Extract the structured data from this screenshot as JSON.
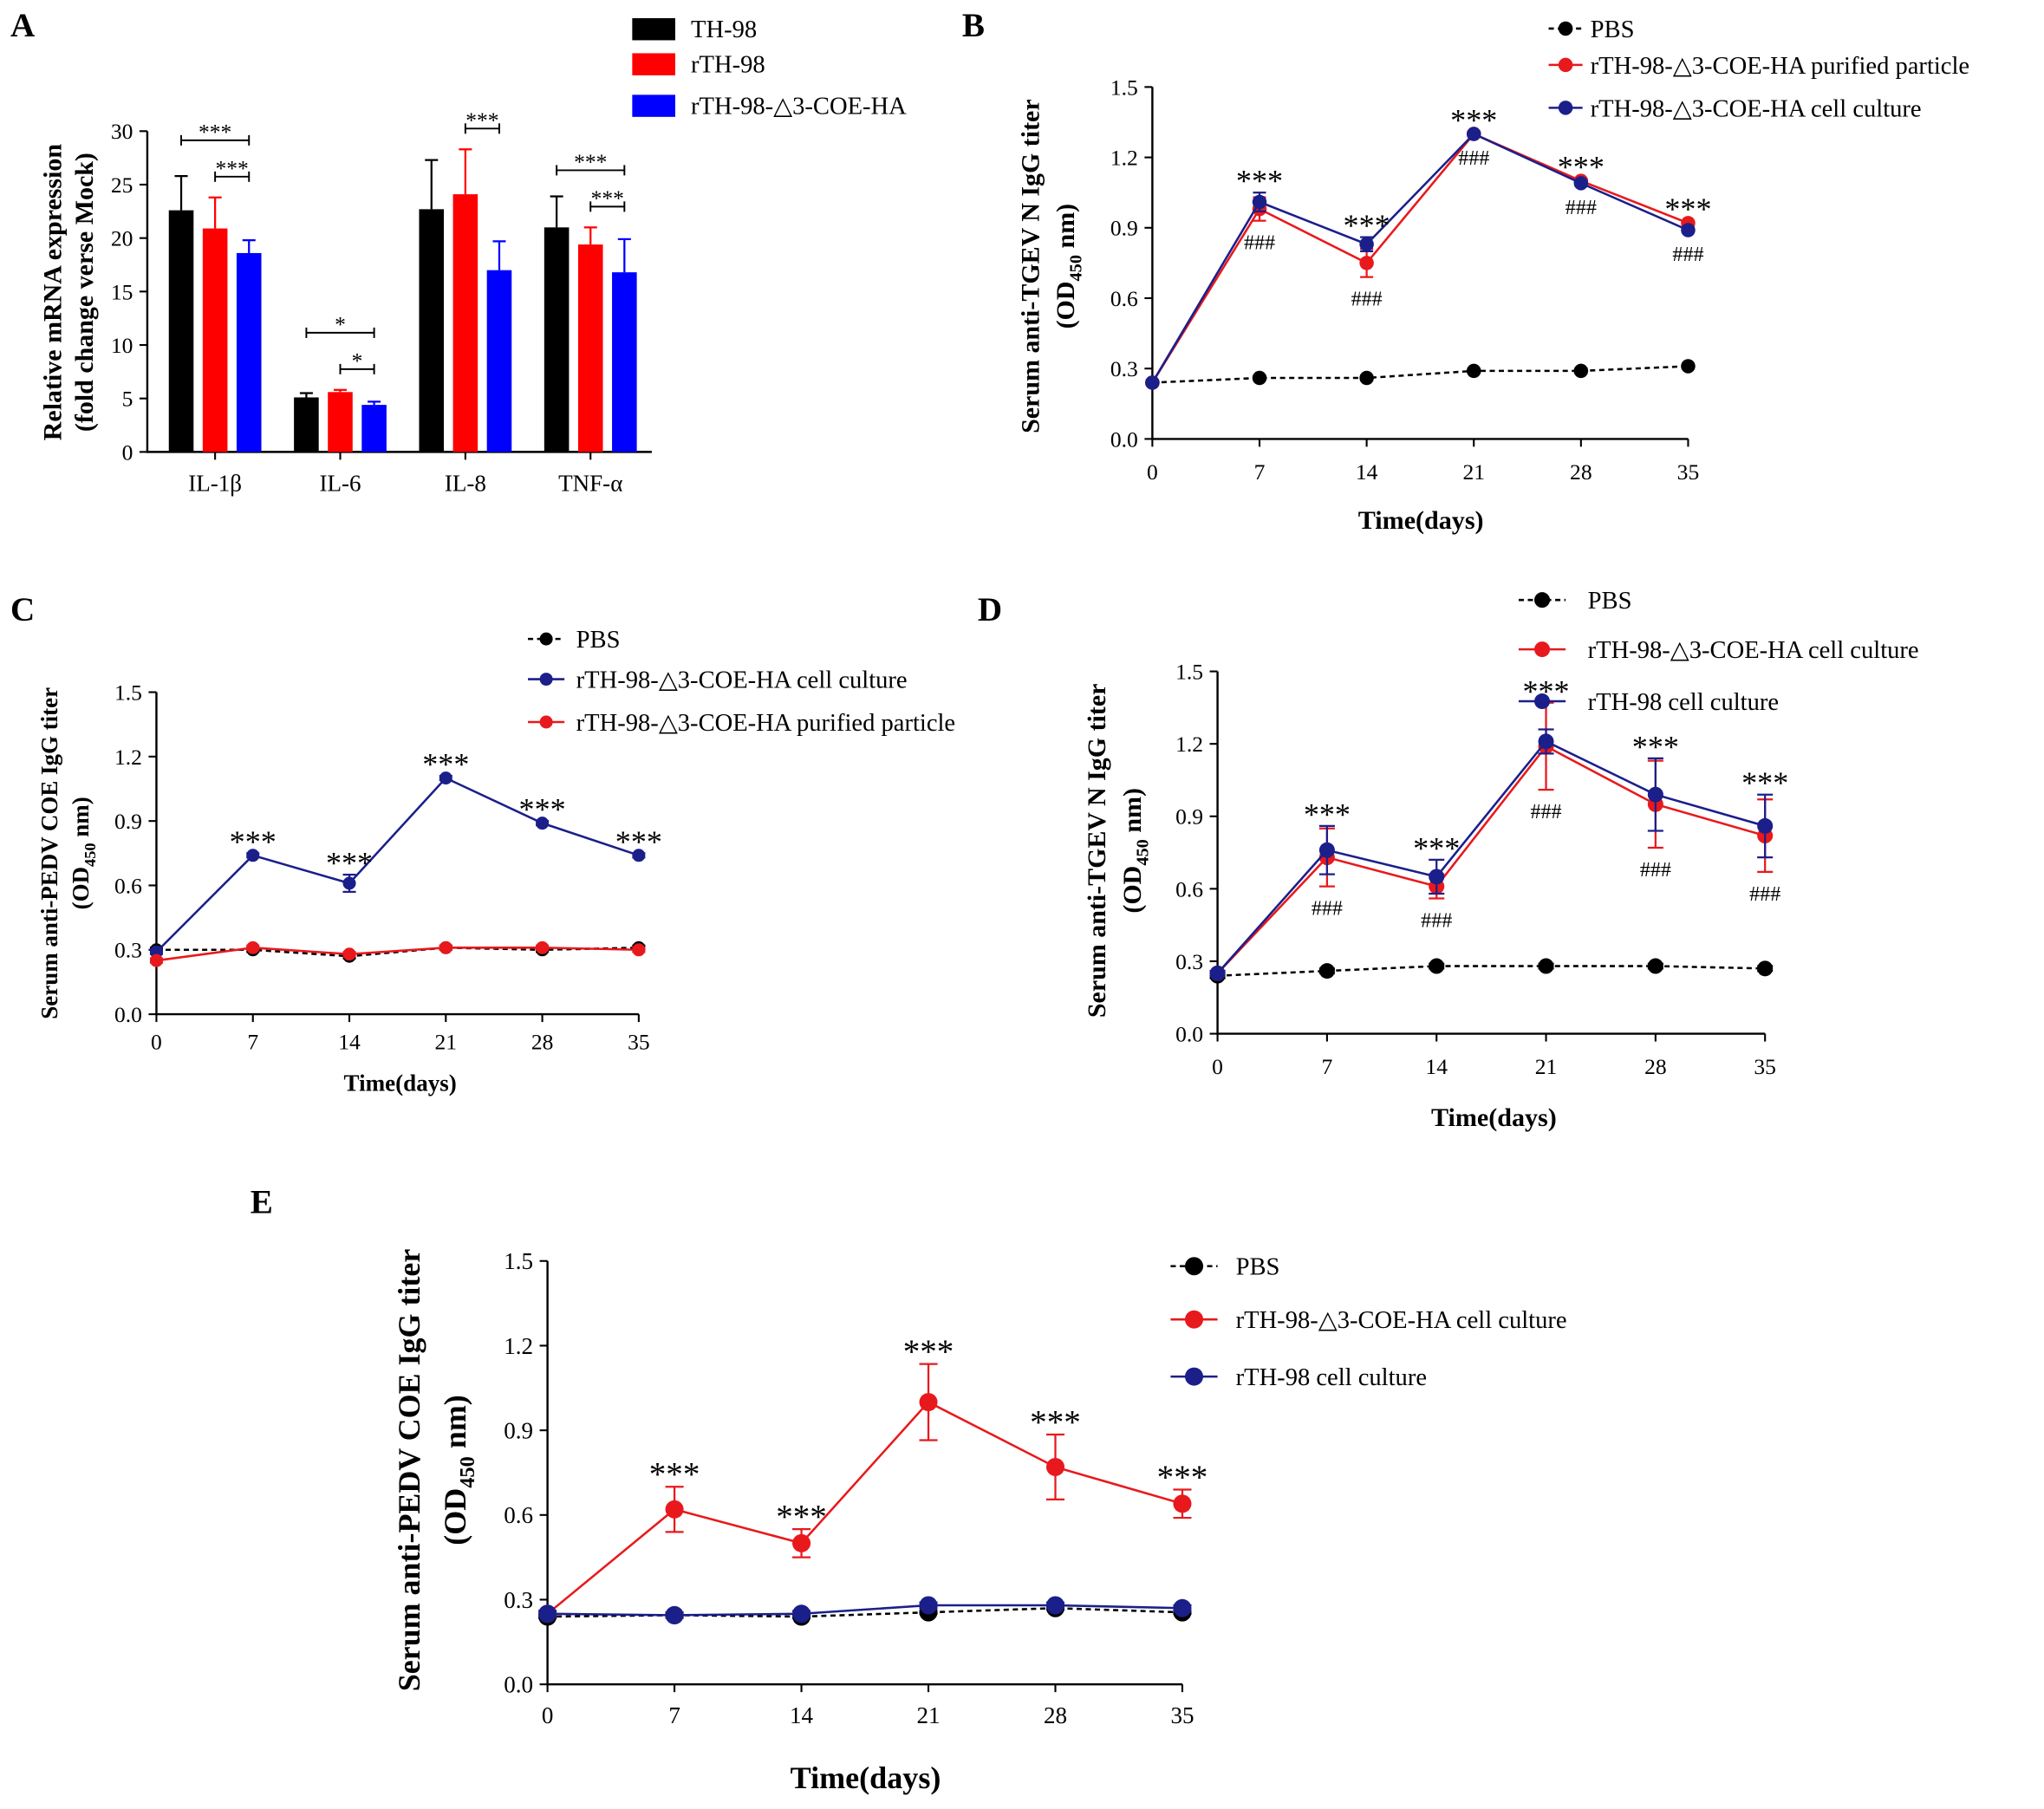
{
  "chart_data": [
    {
      "panel": "A",
      "type": "bar",
      "categories": [
        "IL-1β",
        "IL-6",
        "IL-8",
        "TNF-α"
      ],
      "series": [
        {
          "name": "TH-98",
          "color": "#000000",
          "values": [
            22.6,
            5.1,
            22.7,
            21.0
          ],
          "errors": [
            3.2,
            0.4,
            4.6,
            2.9
          ]
        },
        {
          "name": "rTH-98",
          "color": "#ff0000",
          "values": [
            20.9,
            5.6,
            24.1,
            19.4
          ],
          "errors": [
            2.9,
            0.2,
            4.2,
            1.6
          ]
        },
        {
          "name": "rTH-98-△3-COE-HA",
          "color": "#0000ff",
          "values": [
            18.6,
            4.4,
            17.0,
            16.8
          ],
          "errors": [
            1.2,
            0.3,
            2.7,
            3.1
          ]
        }
      ],
      "ylabel": {
        "line1": "Relative mRNA expression",
        "line2": "(fold change verse Mock)"
      },
      "ylim": [
        0,
        30
      ],
      "yticks": [
        "0",
        "5",
        "10",
        "15",
        "20",
        "25",
        "30"
      ],
      "comparisons": [
        {
          "category": 0,
          "from": 1,
          "to": 2,
          "label": "***"
        },
        {
          "category": 0,
          "from": 0,
          "to": 2,
          "label": "***"
        },
        {
          "category": 1,
          "from": 1,
          "to": 2,
          "label": "*"
        },
        {
          "category": 1,
          "from": 0,
          "to": 2,
          "label": "*"
        },
        {
          "category": 2,
          "from": 1,
          "to": 2,
          "label": "***"
        },
        {
          "category": 3,
          "from": 1,
          "to": 2,
          "label": "***"
        },
        {
          "category": 3,
          "from": 0,
          "to": 2,
          "label": "***"
        }
      ]
    },
    {
      "panel": "B",
      "type": "line",
      "x": [
        0,
        7,
        14,
        21,
        28,
        35
      ],
      "xticks": [
        "0",
        "7",
        "14",
        "21",
        "28",
        "35"
      ],
      "xlim": [
        0,
        35
      ],
      "ylim": [
        0,
        1.5
      ],
      "yticks": [
        "0.0",
        "0.3",
        "0.6",
        "0.9",
        "1.2",
        "1.5"
      ],
      "xlabel": "Time(days)",
      "ylabel": {
        "line1": "Serum anti-TGEV N IgG titer",
        "line2_prefix": "(OD",
        "line2_sub": "450",
        "line2_suffix": " nm)"
      },
      "series": [
        {
          "name": "PBS",
          "color": "#000000",
          "line_style": "dashed",
          "values": [
            0.24,
            0.26,
            0.26,
            0.29,
            0.29,
            0.31
          ],
          "errors": [
            0.01,
            0.01,
            0.01,
            0.01,
            0.01,
            0.01
          ]
        },
        {
          "name": "rTH-98-△3-COE-HA purified particle",
          "color": "#e8191c",
          "line_style": "solid",
          "values": [
            0.24,
            0.98,
            0.75,
            1.3,
            1.1,
            0.92
          ],
          "errors": [
            0.01,
            0.05,
            0.06,
            0.01,
            0.01,
            0.01
          ]
        },
        {
          "name": "rTH-98-△3-COE-HA cell culture",
          "color": "#1b1f8a",
          "line_style": "solid",
          "values": [
            0.24,
            1.01,
            0.83,
            1.3,
            1.09,
            0.89
          ],
          "errors": [
            0.01,
            0.04,
            0.03,
            0.01,
            0.01,
            0.01
          ]
        }
      ],
      "annotations": [
        {
          "x": 7,
          "above": "***",
          "below": "###"
        },
        {
          "x": 14,
          "above": "***",
          "below": "###"
        },
        {
          "x": 21,
          "above": "***",
          "below": "###"
        },
        {
          "x": 28,
          "above": "***",
          "below": "###"
        },
        {
          "x": 35,
          "above": "***",
          "below": "###"
        }
      ]
    },
    {
      "panel": "C",
      "type": "line",
      "x": [
        0,
        7,
        14,
        21,
        28,
        35
      ],
      "xticks": [
        "0",
        "7",
        "14",
        "21",
        "28",
        "35"
      ],
      "xlim": [
        0,
        35
      ],
      "ylim": [
        0,
        1.5
      ],
      "yticks": [
        "0.0",
        "0.3",
        "0.6",
        "0.9",
        "1.2",
        "1.5"
      ],
      "xlabel": "Time(days)",
      "ylabel": {
        "line1": "Serum anti-PEDV COE IgG titer",
        "line2_prefix": "(OD",
        "line2_sub": "450",
        "line2_suffix": " nm)"
      },
      "series": [
        {
          "name": "PBS",
          "color": "#000000",
          "line_style": "dashed",
          "values": [
            0.3,
            0.3,
            0.27,
            0.31,
            0.3,
            0.31
          ],
          "errors": [
            0.01,
            0.01,
            0.01,
            0.01,
            0.01,
            0.01
          ]
        },
        {
          "name": "rTH-98-△3-COE-HA cell culture",
          "color": "#1b1f8a",
          "line_style": "solid",
          "values": [
            0.29,
            0.74,
            0.61,
            1.1,
            0.89,
            0.74
          ],
          "errors": [
            0.01,
            0.01,
            0.04,
            0.01,
            0.01,
            0.01
          ]
        },
        {
          "name": "rTH-98-△3-COE-HA purified particle",
          "color": "#e8191c",
          "line_style": "solid",
          "values": [
            0.25,
            0.31,
            0.28,
            0.31,
            0.31,
            0.3
          ],
          "errors": [
            0.01,
            0.01,
            0.01,
            0.01,
            0.01,
            0.01
          ]
        }
      ],
      "annotations": [
        {
          "x": 7,
          "above": "***"
        },
        {
          "x": 14,
          "above": "***"
        },
        {
          "x": 21,
          "above": "***"
        },
        {
          "x": 28,
          "above": "***"
        },
        {
          "x": 35,
          "above": "***"
        }
      ]
    },
    {
      "panel": "D",
      "type": "line",
      "x": [
        0,
        7,
        14,
        21,
        28,
        35
      ],
      "xticks": [
        "0",
        "7",
        "14",
        "21",
        "28",
        "35"
      ],
      "xlim": [
        0,
        35
      ],
      "ylim": [
        0,
        1.5
      ],
      "yticks": [
        "0.0",
        "0.3",
        "0.6",
        "0.9",
        "1.2",
        "1.5"
      ],
      "xlabel": "Time(days)",
      "ylabel": {
        "line1": "Serum anti-TGEV N IgG titer",
        "line2_prefix": "(OD",
        "line2_sub": "450",
        "line2_suffix": " nm)"
      },
      "series": [
        {
          "name": "PBS",
          "color": "#000000",
          "line_style": "dashed",
          "values": [
            0.24,
            0.26,
            0.28,
            0.28,
            0.28,
            0.27
          ],
          "errors": [
            0.01,
            0.01,
            0.01,
            0.01,
            0.01,
            0.01
          ]
        },
        {
          "name": "rTH-98-△3-COE-HA cell culture",
          "color": "#e8191c",
          "line_style": "solid",
          "values": [
            0.25,
            0.73,
            0.61,
            1.19,
            0.95,
            0.82
          ],
          "errors": [
            0.01,
            0.12,
            0.05,
            0.18,
            0.18,
            0.15
          ]
        },
        {
          "name": "rTH-98 cell culture",
          "color": "#1b1f8a",
          "line_style": "solid",
          "values": [
            0.25,
            0.76,
            0.65,
            1.21,
            0.99,
            0.86
          ],
          "errors": [
            0.01,
            0.1,
            0.07,
            0.05,
            0.15,
            0.13
          ]
        }
      ],
      "annotations": [
        {
          "x": 7,
          "above": "***",
          "below": "###"
        },
        {
          "x": 14,
          "above": "***",
          "below": "###"
        },
        {
          "x": 21,
          "above": "***",
          "below": "###"
        },
        {
          "x": 28,
          "above": "***",
          "below": "###"
        },
        {
          "x": 35,
          "above": "***",
          "below": "###"
        }
      ]
    },
    {
      "panel": "E",
      "type": "line",
      "x": [
        0,
        7,
        14,
        21,
        28,
        35
      ],
      "xticks": [
        "0",
        "7",
        "14",
        "21",
        "28",
        "35"
      ],
      "xlim": [
        0,
        35
      ],
      "ylim": [
        0,
        1.5
      ],
      "yticks": [
        "0.0",
        "0.3",
        "0.6",
        "0.9",
        "1.2",
        "1.5"
      ],
      "xlabel": "Time(days)",
      "ylabel": {
        "line1": "Serum anti-PEDV COE IgG titer",
        "line2_prefix": "(OD",
        "line2_sub": "450",
        "line2_suffix": " nm)"
      },
      "series": [
        {
          "name": "PBS",
          "color": "#000000",
          "line_style": "dashed",
          "values": [
            0.24,
            0.245,
            0.24,
            0.255,
            0.27,
            0.255
          ],
          "errors": [
            0.005,
            0.005,
            0.005,
            0.005,
            0.005,
            0.005
          ]
        },
        {
          "name": "rTH-98-△3-COE-HA cell culture",
          "color": "#e8191c",
          "line_style": "solid",
          "values": [
            0.25,
            0.62,
            0.5,
            1.0,
            0.77,
            0.64
          ],
          "errors": [
            0.01,
            0.08,
            0.05,
            0.135,
            0.115,
            0.05
          ]
        },
        {
          "name": "rTH-98 cell culture",
          "color": "#1b1f8a",
          "line_style": "solid",
          "values": [
            0.25,
            0.245,
            0.25,
            0.28,
            0.28,
            0.27
          ],
          "errors": [
            0.01,
            0.01,
            0.01,
            0.01,
            0.01,
            0.01
          ]
        }
      ],
      "annotations": [
        {
          "x": 7,
          "above": "***"
        },
        {
          "x": 14,
          "above": "***"
        },
        {
          "x": 21,
          "above": "***"
        },
        {
          "x": 28,
          "above": "***"
        },
        {
          "x": 35,
          "above": "***"
        }
      ]
    }
  ]
}
